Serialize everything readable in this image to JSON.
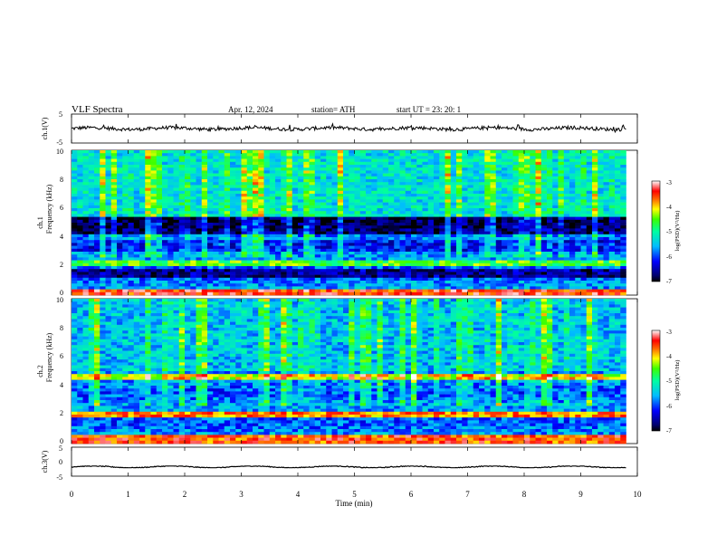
{
  "header": {
    "title": "VLF  Spectra",
    "date": "Apr. 12, 2024",
    "station": "station= ATH",
    "start": "start  UT  =    23: 20: 1"
  },
  "panels": {
    "ch1_wave_label": "ch.1(V)",
    "ch1_spec_label_a": "ch.1",
    "ch1_spec_label_b": "Frequency  (kHz)",
    "ch2_spec_label_a": "ch.2",
    "ch2_spec_label_b": "Frequency  (kHz)",
    "ch3_wave_label": "ch.3(V)",
    "colorbar_label": "log(PSD)(V²/Hz)"
  },
  "chart_data": [
    {
      "type": "line",
      "name": "ch.1 waveform",
      "ylabel": "ch.1(V)",
      "ylim": [
        -5,
        5
      ],
      "yticks": [
        "5",
        "-5"
      ],
      "xlim": [
        0,
        10
      ],
      "x_extent": [
        0,
        9.8
      ],
      "mean": 0.0,
      "amplitude_range": [
        -1.2,
        1.6
      ]
    },
    {
      "type": "heatmap",
      "name": "ch.1 spectrogram",
      "ylabel": "Frequency  (kHz)",
      "ylim": [
        0,
        10
      ],
      "yticks": [
        "0",
        "2",
        "4",
        "6",
        "8",
        "10"
      ],
      "xlim": [
        0,
        10
      ],
      "x_extent": [
        0,
        9.8
      ],
      "colorbar": {
        "label": "log(PSD)(V²/Hz)",
        "range": [
          -7,
          -3
        ],
        "ticks": [
          "-3",
          "-4",
          "-5",
          "-6",
          "-7"
        ]
      },
      "bands": [
        {
          "freq_khz": [
            0,
            0.4
          ],
          "level": -3.5
        },
        {
          "freq_khz": [
            1.1,
            1.7
          ],
          "level": -6.6
        },
        {
          "freq_khz": [
            2.0,
            2.4
          ],
          "level": -4.6
        },
        {
          "freq_khz": [
            3.0,
            3.7
          ],
          "level": -6.2
        },
        {
          "freq_khz": [
            4.2,
            5.5
          ],
          "level": -6.8
        },
        {
          "freq_khz": [
            5.5,
            10
          ],
          "level": -5.3
        }
      ]
    },
    {
      "type": "heatmap",
      "name": "ch.2 spectrogram",
      "ylabel": "Frequency  (kHz)",
      "ylim": [
        0,
        10
      ],
      "yticks": [
        "0",
        "2",
        "4",
        "6",
        "8",
        "10"
      ],
      "xlim": [
        0,
        10
      ],
      "x_extent": [
        0,
        9.8
      ],
      "colorbar": {
        "label": "log(PSD)(V²/Hz)",
        "range": [
          -7,
          -3
        ],
        "ticks": [
          "-3",
          "-4",
          "-5",
          "-6",
          "-7"
        ]
      },
      "bands": [
        {
          "freq_khz": [
            0,
            0.5
          ],
          "level": -3.6
        },
        {
          "freq_khz": [
            1.8,
            2.2
          ],
          "level": -3.8
        },
        {
          "freq_khz": [
            4.4,
            4.7
          ],
          "level": -4.2
        },
        {
          "freq_khz": [
            5.0,
            10
          ],
          "level": -5.5
        }
      ]
    },
    {
      "type": "line",
      "name": "ch.3 waveform",
      "ylabel": "ch.3(V)",
      "ylim": [
        -5,
        5
      ],
      "yticks": [
        "5",
        "0",
        "-5"
      ],
      "xlim": [
        0,
        10
      ],
      "x_extent": [
        0,
        9.8
      ],
      "mean": -1.8,
      "amplitude_range": [
        -2.1,
        -1.5
      ]
    }
  ],
  "xaxis": {
    "label": "Time  (min)",
    "ticks": [
      "0",
      "1",
      "2",
      "3",
      "4",
      "5",
      "6",
      "7",
      "8",
      "9",
      "10"
    ]
  }
}
